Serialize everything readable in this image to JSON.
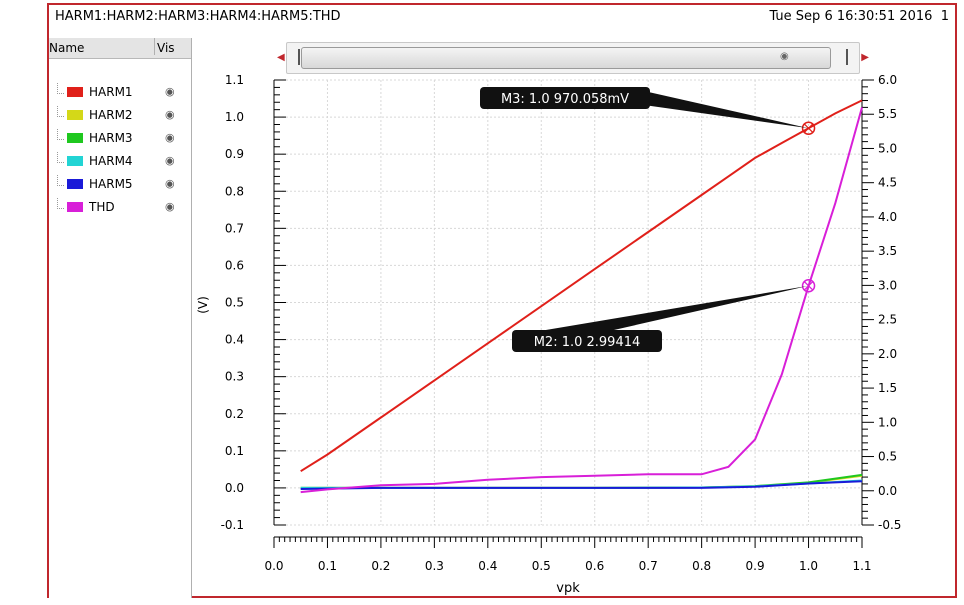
{
  "header": {
    "title": "HARM1:HARM2:HARM3:HARM4:HARM5:THD",
    "timestamp": "Tue Sep 6 16:30:51 2016",
    "page": "1"
  },
  "legend": {
    "col_name": "Name",
    "col_vis": "Vis",
    "items": [
      {
        "label": "HARM1",
        "color": "#e0201a"
      },
      {
        "label": "HARM2",
        "color": "#d4d818"
      },
      {
        "label": "HARM3",
        "color": "#1fc81f"
      },
      {
        "label": "HARM4",
        "color": "#22d4d4"
      },
      {
        "label": "HARM5",
        "color": "#1a1ad8"
      },
      {
        "label": "THD",
        "color": "#d81fd8"
      }
    ],
    "eye_icon": "eye-icon"
  },
  "chart_data": {
    "type": "line",
    "xlabel": "vpk",
    "ylabel": "(V)",
    "xlim": [
      0.0,
      1.1
    ],
    "ylim_left": [
      -0.1,
      1.1
    ],
    "ylim_right": [
      -0.5,
      6.0
    ],
    "x_ticks": [
      "0.0",
      "0.1",
      "0.2",
      "0.3",
      "0.4",
      "0.5",
      "0.6",
      "0.7",
      "0.8",
      "0.9",
      "1.0",
      "1.1"
    ],
    "y_ticks_left": [
      "-0.1",
      "0.0",
      "0.1",
      "0.2",
      "0.3",
      "0.4",
      "0.5",
      "0.6",
      "0.7",
      "0.8",
      "0.9",
      "1.0",
      "1.1"
    ],
    "y_ticks_right": [
      "-0.5",
      "0.0",
      "0.5",
      "1.0",
      "1.5",
      "2.0",
      "2.5",
      "3.0",
      "3.5",
      "4.0",
      "4.5",
      "5.0",
      "5.5",
      "6.0"
    ],
    "grid": true,
    "series": [
      {
        "name": "HARM1",
        "color": "#e0201a",
        "axis": "left",
        "x": [
          0.05,
          0.1,
          0.2,
          0.3,
          0.4,
          0.5,
          0.6,
          0.7,
          0.8,
          0.85,
          0.9,
          0.95,
          1.0,
          1.05,
          1.1
        ],
        "y": [
          0.045,
          0.09,
          0.19,
          0.29,
          0.39,
          0.49,
          0.59,
          0.69,
          0.79,
          0.84,
          0.89,
          0.93,
          0.97,
          1.01,
          1.045
        ]
      },
      {
        "name": "HARM2",
        "color": "#d4d818",
        "axis": "left",
        "x": [
          0.05,
          0.2,
          0.4,
          0.6,
          0.8,
          0.9,
          1.0,
          1.1
        ],
        "y": [
          0.0,
          0.0,
          0.0,
          0.0,
          0.001,
          0.004,
          0.014,
          0.033
        ]
      },
      {
        "name": "HARM3",
        "color": "#1fc81f",
        "axis": "left",
        "x": [
          0.05,
          0.2,
          0.4,
          0.6,
          0.8,
          0.9,
          1.0,
          1.1
        ],
        "y": [
          0.0,
          0.0,
          0.0,
          0.0,
          0.001,
          0.005,
          0.015,
          0.035
        ]
      },
      {
        "name": "HARM4",
        "color": "#22d4d4",
        "axis": "left",
        "x": [
          0.05,
          0.2,
          0.4,
          0.6,
          0.8,
          0.9,
          1.0,
          1.1
        ],
        "y": [
          0.0,
          0.0,
          0.0,
          0.0,
          0.001,
          0.004,
          0.012,
          0.02
        ]
      },
      {
        "name": "HARM5",
        "color": "#1a1ad8",
        "axis": "left",
        "x": [
          0.05,
          0.2,
          0.4,
          0.6,
          0.8,
          0.9,
          1.0,
          1.1
        ],
        "y": [
          -0.003,
          0.0,
          0.0,
          0.0,
          0.0,
          0.003,
          0.012,
          0.018
        ]
      },
      {
        "name": "THD",
        "color": "#d81fd8",
        "axis": "right",
        "x": [
          0.05,
          0.1,
          0.2,
          0.3,
          0.4,
          0.5,
          0.6,
          0.7,
          0.8,
          0.85,
          0.9,
          0.95,
          1.0,
          1.05,
          1.1
        ],
        "y": [
          -0.02,
          0.02,
          0.08,
          0.1,
          0.16,
          0.2,
          0.22,
          0.24,
          0.24,
          0.35,
          0.75,
          1.7,
          2.99,
          4.2,
          5.6
        ]
      }
    ],
    "markers": [
      {
        "label": "M3: 1.0 970.058mV",
        "series": "HARM1",
        "x": 1.0,
        "y": 0.97,
        "axis": "left"
      },
      {
        "label": "M2: 1.0 2.99414",
        "series": "THD",
        "x": 1.0,
        "y": 2.99414,
        "axis": "right"
      }
    ]
  }
}
